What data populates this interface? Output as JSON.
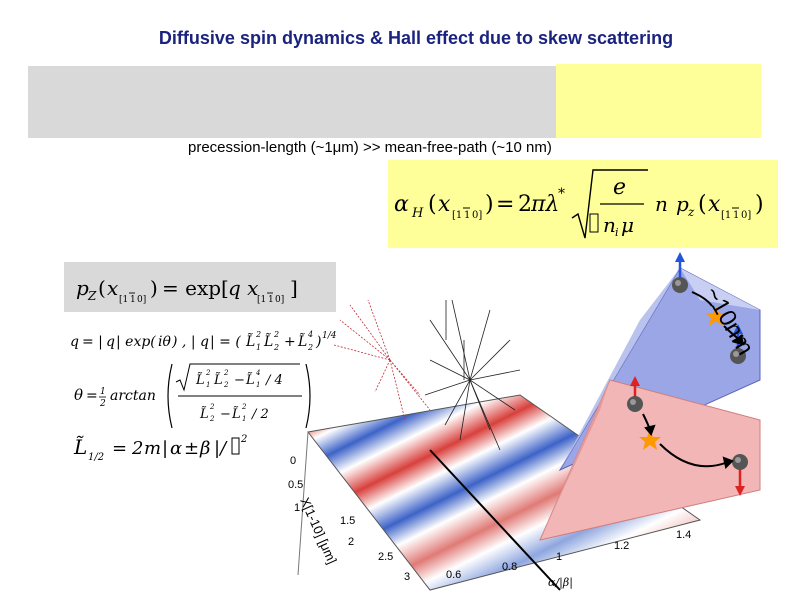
{
  "slide": {
    "title": "Diffusive spin dynamics & Hall effect due to skew scattering",
    "subtitle": "precession-length (~1μm) >> mean-free-path (~10 nm)"
  },
  "formulas": {
    "alpha_h": "αH(x[1̅1 0]) = 2πλ* √(e / (nᵢ μ)) n pz(x[1̅1 0])",
    "pz": "pZ(x[1̅1 0]) = exp[q x[1̅1 0]]",
    "q": "q = | q | exp(iθ) , | q | = (L̃1² L̃2² + L̃2⁴)^1/4",
    "theta": "θ = ½ arctan √(L̃1²L̃2² − L̃1⁴/4) / (L̃2² − L̃1²/2)",
    "l12": "L̃1/2 = 2m | α ± β |/ℏ²"
  },
  "figure": {
    "length_label": "~10nm",
    "x_axis_label": "X[1-10] [μm]",
    "x_ticks": [
      "0",
      "0.5",
      "1",
      "1.5",
      "2",
      "2.5",
      "3"
    ],
    "ratio_axis_label": "α/|β|",
    "ratio_ticks": [
      "0.6",
      "0.8",
      "1",
      "1.2",
      "1.4"
    ],
    "colors": {
      "spin_up": "#2255dd",
      "spin_down": "#dd2222",
      "star": "#ff9900",
      "blue_prism": "#9aa6e6",
      "red_prism": "#f2b6b6"
    }
  }
}
